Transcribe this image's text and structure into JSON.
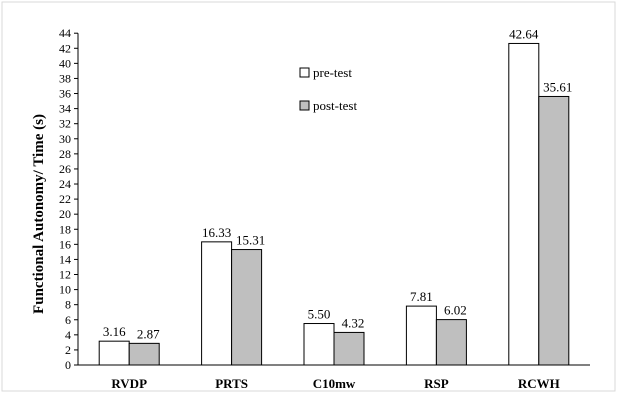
{
  "chart_data": {
    "type": "bar",
    "title": "",
    "xlabel": "",
    "ylabel": "Functional Autonomy/ Time (s)",
    "ylim": [
      0,
      44
    ],
    "ytick_step": 2,
    "grid": false,
    "legend_position": "upper-middle",
    "categories": [
      "RVDP",
      "PRTS",
      "C10mw",
      "RSP",
      "RCWH"
    ],
    "series": [
      {
        "name": "pre-test",
        "color": "#ffffff",
        "values": [
          3.16,
          16.33,
          5.5,
          7.81,
          42.64
        ],
        "labels": [
          "3.16",
          "16.33",
          "5.50",
          "7.81",
          "42.64"
        ]
      },
      {
        "name": "post-test",
        "color": "#bfbfbf",
        "values": [
          2.87,
          15.31,
          4.32,
          6.02,
          35.61
        ],
        "labels": [
          "2.87",
          "15.31",
          "4.32",
          "6.02",
          "35.61"
        ]
      }
    ]
  }
}
